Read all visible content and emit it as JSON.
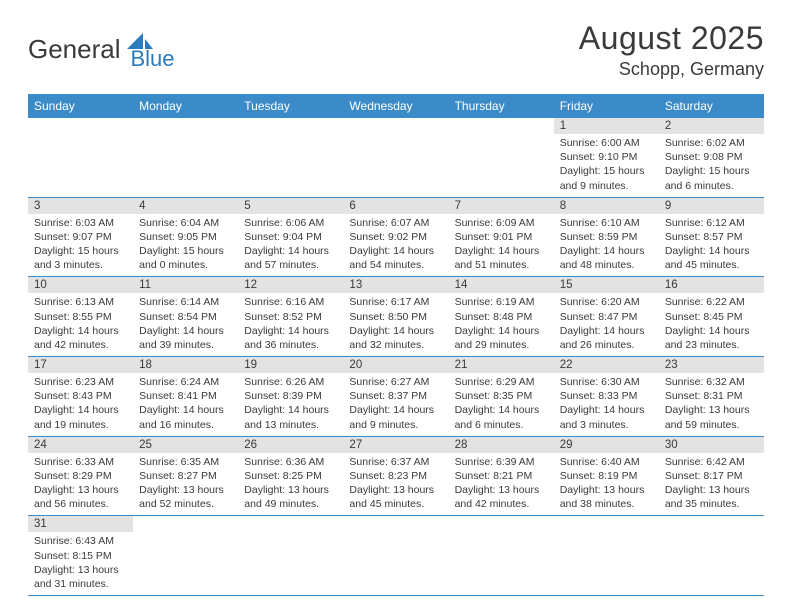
{
  "brand": {
    "part1": "General",
    "part2": "Blue"
  },
  "title": "August 2025",
  "location": "Schopp, Germany",
  "weekdays": [
    "Sunday",
    "Monday",
    "Tuesday",
    "Wednesday",
    "Thursday",
    "Friday",
    "Saturday"
  ],
  "colors": {
    "header_bg": "#3b8bc9",
    "header_fg": "#ffffff",
    "daynum_bg": "#e3e3e3",
    "border": "#3b8bc9",
    "text": "#3a3a3a",
    "brand_blue": "#2b7bbf"
  },
  "weeks": [
    [
      null,
      null,
      null,
      null,
      null,
      {
        "n": "1",
        "sr": "Sunrise: 6:00 AM",
        "ss": "Sunset: 9:10 PM",
        "d1": "Daylight: 15 hours",
        "d2": "and 9 minutes."
      },
      {
        "n": "2",
        "sr": "Sunrise: 6:02 AM",
        "ss": "Sunset: 9:08 PM",
        "d1": "Daylight: 15 hours",
        "d2": "and 6 minutes."
      }
    ],
    [
      {
        "n": "3",
        "sr": "Sunrise: 6:03 AM",
        "ss": "Sunset: 9:07 PM",
        "d1": "Daylight: 15 hours",
        "d2": "and 3 minutes."
      },
      {
        "n": "4",
        "sr": "Sunrise: 6:04 AM",
        "ss": "Sunset: 9:05 PM",
        "d1": "Daylight: 15 hours",
        "d2": "and 0 minutes."
      },
      {
        "n": "5",
        "sr": "Sunrise: 6:06 AM",
        "ss": "Sunset: 9:04 PM",
        "d1": "Daylight: 14 hours",
        "d2": "and 57 minutes."
      },
      {
        "n": "6",
        "sr": "Sunrise: 6:07 AM",
        "ss": "Sunset: 9:02 PM",
        "d1": "Daylight: 14 hours",
        "d2": "and 54 minutes."
      },
      {
        "n": "7",
        "sr": "Sunrise: 6:09 AM",
        "ss": "Sunset: 9:01 PM",
        "d1": "Daylight: 14 hours",
        "d2": "and 51 minutes."
      },
      {
        "n": "8",
        "sr": "Sunrise: 6:10 AM",
        "ss": "Sunset: 8:59 PM",
        "d1": "Daylight: 14 hours",
        "d2": "and 48 minutes."
      },
      {
        "n": "9",
        "sr": "Sunrise: 6:12 AM",
        "ss": "Sunset: 8:57 PM",
        "d1": "Daylight: 14 hours",
        "d2": "and 45 minutes."
      }
    ],
    [
      {
        "n": "10",
        "sr": "Sunrise: 6:13 AM",
        "ss": "Sunset: 8:55 PM",
        "d1": "Daylight: 14 hours",
        "d2": "and 42 minutes."
      },
      {
        "n": "11",
        "sr": "Sunrise: 6:14 AM",
        "ss": "Sunset: 8:54 PM",
        "d1": "Daylight: 14 hours",
        "d2": "and 39 minutes."
      },
      {
        "n": "12",
        "sr": "Sunrise: 6:16 AM",
        "ss": "Sunset: 8:52 PM",
        "d1": "Daylight: 14 hours",
        "d2": "and 36 minutes."
      },
      {
        "n": "13",
        "sr": "Sunrise: 6:17 AM",
        "ss": "Sunset: 8:50 PM",
        "d1": "Daylight: 14 hours",
        "d2": "and 32 minutes."
      },
      {
        "n": "14",
        "sr": "Sunrise: 6:19 AM",
        "ss": "Sunset: 8:48 PM",
        "d1": "Daylight: 14 hours",
        "d2": "and 29 minutes."
      },
      {
        "n": "15",
        "sr": "Sunrise: 6:20 AM",
        "ss": "Sunset: 8:47 PM",
        "d1": "Daylight: 14 hours",
        "d2": "and 26 minutes."
      },
      {
        "n": "16",
        "sr": "Sunrise: 6:22 AM",
        "ss": "Sunset: 8:45 PM",
        "d1": "Daylight: 14 hours",
        "d2": "and 23 minutes."
      }
    ],
    [
      {
        "n": "17",
        "sr": "Sunrise: 6:23 AM",
        "ss": "Sunset: 8:43 PM",
        "d1": "Daylight: 14 hours",
        "d2": "and 19 minutes."
      },
      {
        "n": "18",
        "sr": "Sunrise: 6:24 AM",
        "ss": "Sunset: 8:41 PM",
        "d1": "Daylight: 14 hours",
        "d2": "and 16 minutes."
      },
      {
        "n": "19",
        "sr": "Sunrise: 6:26 AM",
        "ss": "Sunset: 8:39 PM",
        "d1": "Daylight: 14 hours",
        "d2": "and 13 minutes."
      },
      {
        "n": "20",
        "sr": "Sunrise: 6:27 AM",
        "ss": "Sunset: 8:37 PM",
        "d1": "Daylight: 14 hours",
        "d2": "and 9 minutes."
      },
      {
        "n": "21",
        "sr": "Sunrise: 6:29 AM",
        "ss": "Sunset: 8:35 PM",
        "d1": "Daylight: 14 hours",
        "d2": "and 6 minutes."
      },
      {
        "n": "22",
        "sr": "Sunrise: 6:30 AM",
        "ss": "Sunset: 8:33 PM",
        "d1": "Daylight: 14 hours",
        "d2": "and 3 minutes."
      },
      {
        "n": "23",
        "sr": "Sunrise: 6:32 AM",
        "ss": "Sunset: 8:31 PM",
        "d1": "Daylight: 13 hours",
        "d2": "and 59 minutes."
      }
    ],
    [
      {
        "n": "24",
        "sr": "Sunrise: 6:33 AM",
        "ss": "Sunset: 8:29 PM",
        "d1": "Daylight: 13 hours",
        "d2": "and 56 minutes."
      },
      {
        "n": "25",
        "sr": "Sunrise: 6:35 AM",
        "ss": "Sunset: 8:27 PM",
        "d1": "Daylight: 13 hours",
        "d2": "and 52 minutes."
      },
      {
        "n": "26",
        "sr": "Sunrise: 6:36 AM",
        "ss": "Sunset: 8:25 PM",
        "d1": "Daylight: 13 hours",
        "d2": "and 49 minutes."
      },
      {
        "n": "27",
        "sr": "Sunrise: 6:37 AM",
        "ss": "Sunset: 8:23 PM",
        "d1": "Daylight: 13 hours",
        "d2": "and 45 minutes."
      },
      {
        "n": "28",
        "sr": "Sunrise: 6:39 AM",
        "ss": "Sunset: 8:21 PM",
        "d1": "Daylight: 13 hours",
        "d2": "and 42 minutes."
      },
      {
        "n": "29",
        "sr": "Sunrise: 6:40 AM",
        "ss": "Sunset: 8:19 PM",
        "d1": "Daylight: 13 hours",
        "d2": "and 38 minutes."
      },
      {
        "n": "30",
        "sr": "Sunrise: 6:42 AM",
        "ss": "Sunset: 8:17 PM",
        "d1": "Daylight: 13 hours",
        "d2": "and 35 minutes."
      }
    ],
    [
      {
        "n": "31",
        "sr": "Sunrise: 6:43 AM",
        "ss": "Sunset: 8:15 PM",
        "d1": "Daylight: 13 hours",
        "d2": "and 31 minutes."
      },
      null,
      null,
      null,
      null,
      null,
      null
    ]
  ]
}
